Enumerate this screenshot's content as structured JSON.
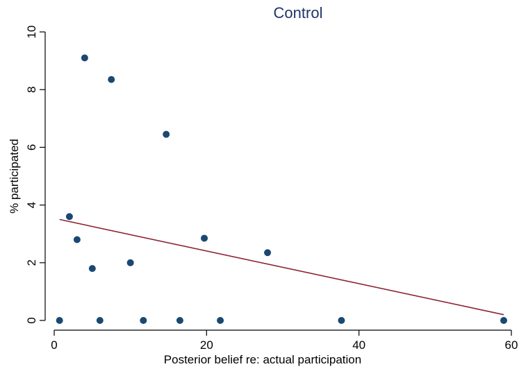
{
  "chart_data": {
    "type": "scatter",
    "title": "Control",
    "xlabel": "Posterior belief re: actual participation",
    "ylabel": "% participated",
    "xlim": [
      0,
      60
    ],
    "ylim": [
      0,
      10
    ],
    "x_ticks": [
      0,
      20,
      40,
      60
    ],
    "y_ticks": [
      0,
      2,
      4,
      6,
      8,
      10
    ],
    "grid": false,
    "legend": "none",
    "series": [
      {
        "type": "scatter",
        "points": [
          {
            "x": 0.7,
            "y": 0
          },
          {
            "x": 2.0,
            "y": 3.6
          },
          {
            "x": 3.0,
            "y": 2.8
          },
          {
            "x": 4.0,
            "y": 9.1
          },
          {
            "x": 5.0,
            "y": 1.8
          },
          {
            "x": 6.0,
            "y": 0
          },
          {
            "x": 7.5,
            "y": 8.35
          },
          {
            "x": 10.0,
            "y": 2.0
          },
          {
            "x": 11.7,
            "y": 0
          },
          {
            "x": 14.7,
            "y": 6.45
          },
          {
            "x": 16.5,
            "y": 0
          },
          {
            "x": 19.7,
            "y": 2.85
          },
          {
            "x": 21.8,
            "y": 0
          },
          {
            "x": 28.0,
            "y": 2.35
          },
          {
            "x": 37.7,
            "y": 0
          },
          {
            "x": 59.0,
            "y": 0
          }
        ]
      },
      {
        "type": "line",
        "points": [
          {
            "x": 0.7,
            "y": 3.5
          },
          {
            "x": 59.0,
            "y": 0.2
          }
        ]
      }
    ],
    "colors": {
      "title": "#1f3566",
      "marker": "#1a4872",
      "fit_line": "#8b2431",
      "axis": "#000000"
    }
  }
}
